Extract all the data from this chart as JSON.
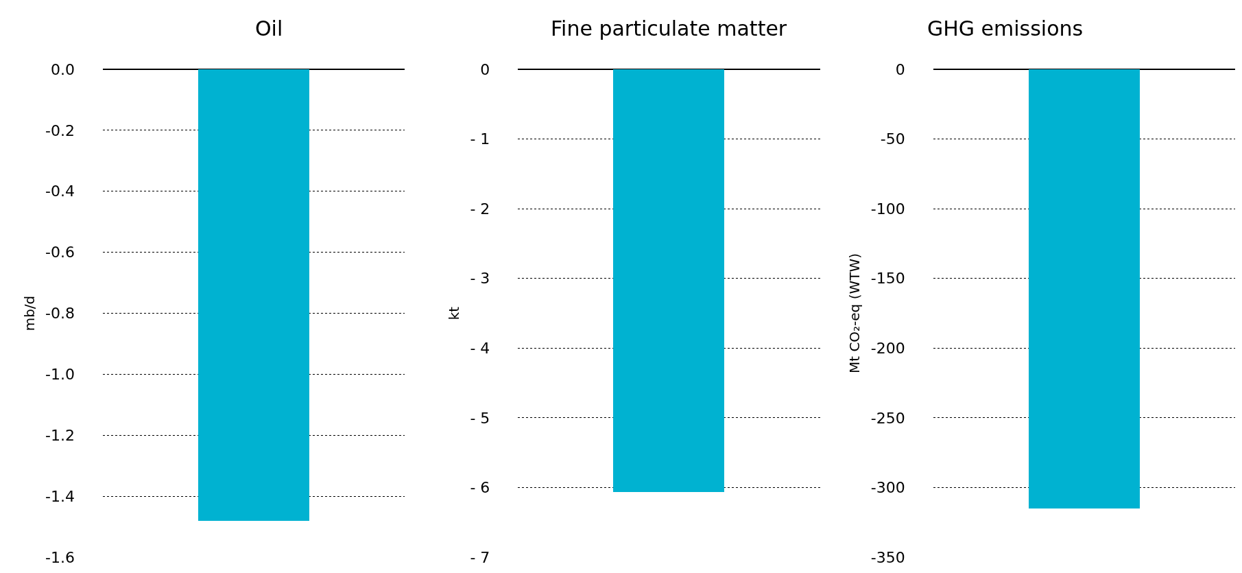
{
  "chart_data": [
    {
      "type": "bar",
      "title": "Oil",
      "ylabel": "mb/d",
      "categories": [
        null
      ],
      "values": [
        -1.48
      ],
      "color": "#00b2d1",
      "ylim": [
        -1.6,
        0
      ],
      "yticks": [
        {
          "value": 0,
          "label": "0.0"
        },
        {
          "value": -0.2,
          "label": "-0.2"
        },
        {
          "value": -0.4,
          "label": "-0.4"
        },
        {
          "value": -0.6,
          "label": "-0.6"
        },
        {
          "value": -0.8,
          "label": "-0.8"
        },
        {
          "value": -1.0,
          "label": "-1.0"
        },
        {
          "value": -1.2,
          "label": "-1.2"
        },
        {
          "value": -1.4,
          "label": "-1.4"
        },
        {
          "value": -1.6,
          "label": "-1.6"
        }
      ],
      "grid": "y"
    },
    {
      "type": "bar",
      "title": "Fine particulate matter",
      "ylabel": "kt",
      "categories": [
        null
      ],
      "values": [
        -6.06
      ],
      "color": "#00b2d1",
      "ylim": [
        -7,
        0
      ],
      "yticks": [
        0,
        {
          "value": -1,
          "label": "- 1"
        },
        {
          "value": -2,
          "label": "- 2"
        },
        {
          "value": -3,
          "label": "- 3"
        },
        {
          "value": -4,
          "label": "- 4"
        },
        {
          "value": -5,
          "label": "- 5"
        },
        {
          "value": -6,
          "label": "- 6"
        },
        {
          "value": -7,
          "label": "- 7"
        }
      ],
      "grid": "y"
    },
    {
      "type": "bar",
      "title": "GHG emissions",
      "ylabel": "Mt CO₂-eq (WTW)",
      "categories": [
        null
      ],
      "values": [
        -315
      ],
      "color": "#00b2d1",
      "ylim": [
        -350,
        0
      ],
      "yticks": [
        0,
        -50,
        -100,
        -150,
        -200,
        -250,
        -300,
        -350
      ],
      "grid": "y"
    }
  ]
}
